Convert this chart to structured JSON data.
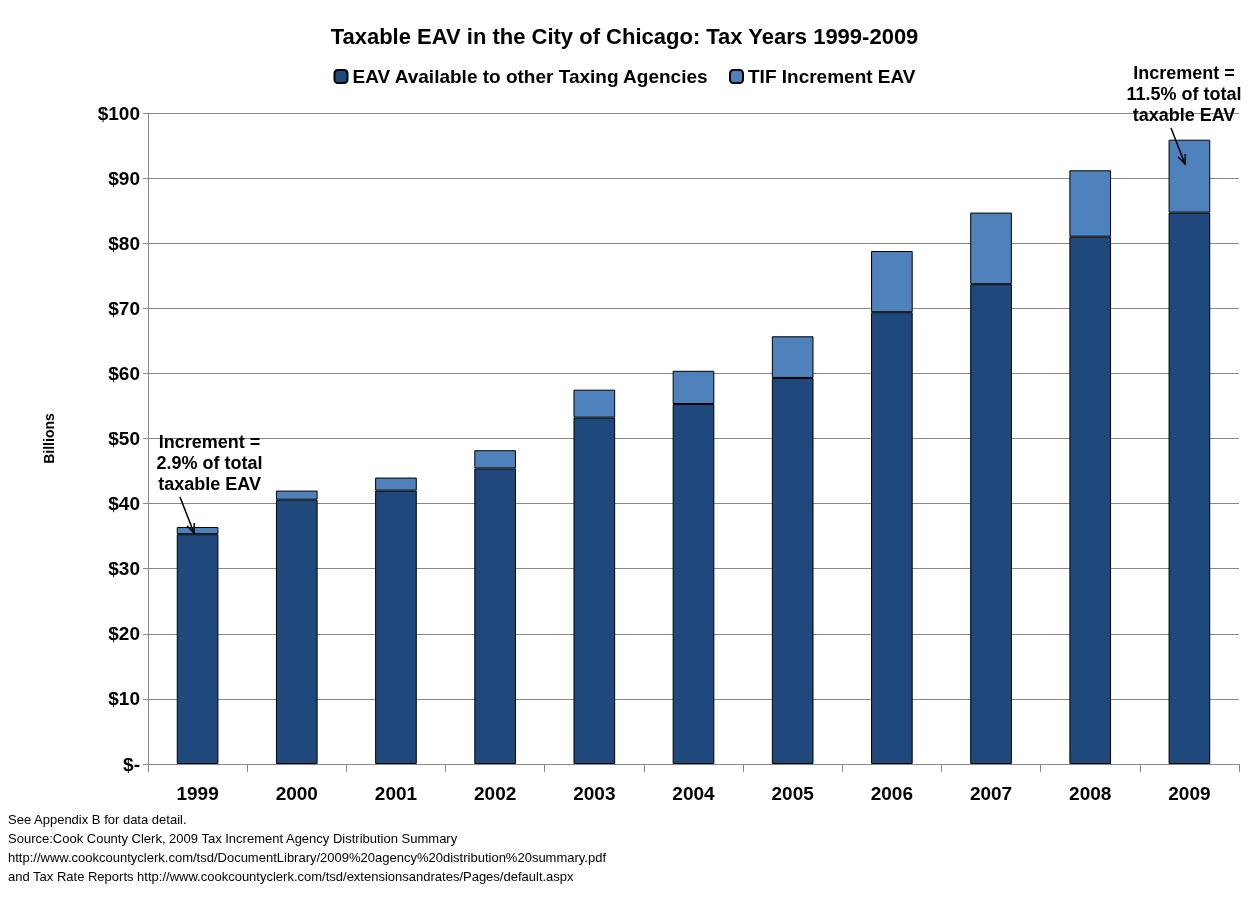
{
  "chart_data": {
    "type": "bar",
    "title": "Taxable EAV in the City of Chicago: Tax Years 1999-2009",
    "ylabel": "Billions",
    "stacked": true,
    "legend": "top",
    "grid": "y",
    "categories": [
      "1999",
      "2000",
      "2001",
      "2002",
      "2003",
      "2004",
      "2005",
      "2006",
      "2007",
      "2008",
      "2009"
    ],
    "series": [
      {
        "name": "EAV Available to other Taxing Agencies",
        "color": "#1f497d",
        "values": [
          35.3,
          40.6,
          42.0,
          45.4,
          53.2,
          55.3,
          59.3,
          69.4,
          73.7,
          81.0,
          84.7
        ]
      },
      {
        "name": "TIF Increment EAV",
        "color": "#4f81bd",
        "values": [
          1.1,
          1.4,
          2.0,
          2.8,
          4.3,
          5.1,
          6.4,
          9.4,
          11.0,
          10.2,
          11.2
        ]
      }
    ],
    "ylim": [
      0,
      100
    ],
    "yticks": [
      {
        "value": 0,
        "label": "$-"
      },
      {
        "value": 10,
        "label": "$10"
      },
      {
        "value": 20,
        "label": "$20"
      },
      {
        "value": 30,
        "label": "$30"
      },
      {
        "value": 40,
        "label": "$40"
      },
      {
        "value": 50,
        "label": "$50"
      },
      {
        "value": 60,
        "label": "$60"
      },
      {
        "value": 70,
        "label": "$70"
      },
      {
        "value": 80,
        "label": "$80"
      },
      {
        "value": 90,
        "label": "$90"
      },
      {
        "value": 100,
        "label": "$100"
      }
    ],
    "annotations": [
      {
        "text": "Increment = 2.9% of total taxable EAV",
        "x": "1999",
        "y": 36.4
      },
      {
        "text": "Increment = 11.5% of total taxable EAV",
        "x": "2009",
        "y": 95.9
      },
      "See Appendix B for data detail.",
      "Source:Cook County Clerk, 2009 Tax Increment Agency Distribution Summary",
      "http://www.cookcountyclerk.com/tsd/DocumentLibrary/2009%20agency%20distribution%20summary.pdf",
      "and Tax Rate Reports http://www.cookcountyclerk.com/tsd/extensionsandrates/Pages/default.aspx"
    ]
  }
}
